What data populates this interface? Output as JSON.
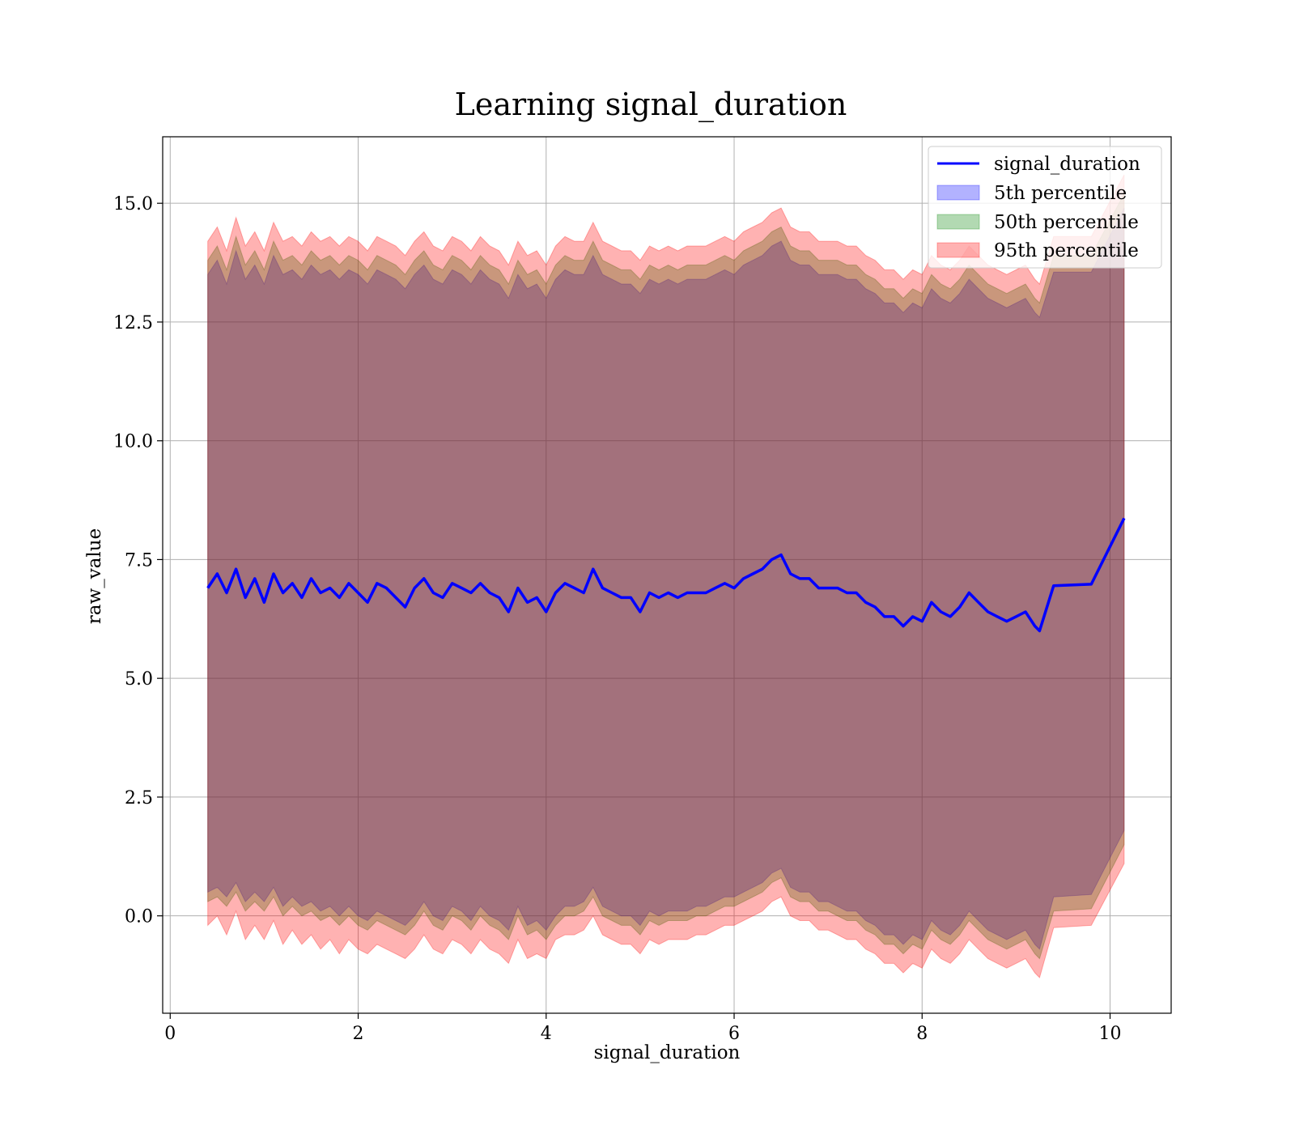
{
  "chart_data": {
    "type": "line",
    "title": "Learning signal_duration",
    "xlabel": "signal_duration",
    "ylabel": "raw_value",
    "xlim": [
      -0.08,
      10.65
    ],
    "ylim": [
      -2.05,
      16.4
    ],
    "xticks": [
      0,
      2,
      4,
      6,
      8,
      10
    ],
    "xtick_labels": [
      "0",
      "2",
      "4",
      "6",
      "8",
      "10"
    ],
    "yticks": [
      0,
      2.5,
      5,
      7.5,
      10,
      12.5,
      15
    ],
    "ytick_labels": [
      "0.0",
      "2.5",
      "5.0",
      "7.5",
      "10.0",
      "12.5",
      "15.0"
    ],
    "grid": true,
    "legend_position": "top-right",
    "x": [
      0.4,
      0.5,
      0.6,
      0.7,
      0.8,
      0.9,
      1.0,
      1.1,
      1.2,
      1.3,
      1.4,
      1.5,
      1.6,
      1.7,
      1.8,
      1.9,
      2.0,
      2.1,
      2.2,
      2.3,
      2.4,
      2.5,
      2.6,
      2.7,
      2.8,
      2.9,
      3.0,
      3.1,
      3.2,
      3.3,
      3.4,
      3.5,
      3.6,
      3.7,
      3.8,
      3.9,
      4.0,
      4.1,
      4.2,
      4.3,
      4.4,
      4.5,
      4.6,
      4.7,
      4.8,
      4.9,
      5.0,
      5.1,
      5.2,
      5.3,
      5.4,
      5.5,
      5.6,
      5.7,
      5.8,
      5.9,
      6.0,
      6.1,
      6.2,
      6.3,
      6.4,
      6.5,
      6.6,
      6.7,
      6.8,
      6.9,
      7.0,
      7.1,
      7.2,
      7.3,
      7.4,
      7.5,
      7.6,
      7.7,
      7.8,
      7.9,
      8.0,
      8.1,
      8.2,
      8.3,
      8.4,
      8.5,
      8.6,
      8.7,
      8.8,
      8.9,
      9.0,
      9.1,
      9.2,
      9.25,
      9.4,
      9.8,
      10.15
    ],
    "series": [
      {
        "name": "signal_duration",
        "kind": "line",
        "color": "#0000ff",
        "values": [
          6.9,
          7.2,
          6.8,
          7.3,
          6.7,
          7.1,
          6.6,
          7.2,
          6.8,
          7.0,
          6.7,
          7.1,
          6.8,
          6.9,
          6.7,
          7.0,
          6.8,
          6.6,
          7.0,
          6.9,
          6.7,
          6.5,
          6.9,
          7.1,
          6.8,
          6.7,
          7.0,
          6.9,
          6.8,
          7.0,
          6.8,
          6.7,
          6.4,
          6.9,
          6.6,
          6.7,
          6.4,
          6.8,
          7.0,
          6.9,
          6.8,
          7.3,
          6.9,
          6.8,
          6.7,
          6.7,
          6.4,
          6.8,
          6.7,
          6.8,
          6.7,
          6.8,
          6.8,
          6.8,
          6.9,
          7.0,
          6.9,
          7.1,
          7.2,
          7.3,
          7.5,
          7.6,
          7.2,
          7.1,
          7.1,
          6.9,
          6.9,
          6.9,
          6.8,
          6.8,
          6.6,
          6.5,
          6.3,
          6.3,
          6.1,
          6.3,
          6.2,
          6.6,
          6.4,
          6.3,
          6.5,
          6.8,
          6.6,
          6.4,
          6.3,
          6.2,
          6.3,
          6.4,
          6.1,
          6.0,
          6.95,
          6.98,
          8.37
        ]
      },
      {
        "name": "5th percentile",
        "kind": "band",
        "color": "#0000ff",
        "lower": [
          0.5,
          0.6,
          0.4,
          0.7,
          0.3,
          0.5,
          0.3,
          0.6,
          0.2,
          0.4,
          0.2,
          0.3,
          0.1,
          0.2,
          0.0,
          0.2,
          0.0,
          -0.1,
          0.1,
          0.0,
          -0.1,
          -0.2,
          0.0,
          0.3,
          0.0,
          -0.1,
          0.2,
          0.1,
          -0.1,
          0.2,
          0.0,
          -0.1,
          -0.3,
          0.2,
          -0.2,
          -0.1,
          -0.3,
          0.0,
          0.2,
          0.2,
          0.3,
          0.6,
          0.2,
          0.1,
          0.0,
          0.0,
          -0.2,
          0.1,
          0.0,
          0.1,
          0.1,
          0.1,
          0.2,
          0.2,
          0.3,
          0.4,
          0.4,
          0.5,
          0.6,
          0.7,
          0.9,
          1.0,
          0.6,
          0.5,
          0.5,
          0.3,
          0.3,
          0.2,
          0.1,
          0.1,
          -0.1,
          -0.2,
          -0.4,
          -0.4,
          -0.6,
          -0.4,
          -0.5,
          -0.1,
          -0.3,
          -0.4,
          -0.2,
          0.1,
          -0.1,
          -0.3,
          -0.4,
          -0.5,
          -0.4,
          -0.3,
          -0.6,
          -0.7,
          0.4,
          0.45,
          1.8
        ],
        "upper": [
          13.5,
          13.8,
          13.3,
          14.0,
          13.4,
          13.7,
          13.3,
          13.9,
          13.5,
          13.6,
          13.4,
          13.7,
          13.5,
          13.6,
          13.4,
          13.6,
          13.5,
          13.3,
          13.6,
          13.5,
          13.4,
          13.2,
          13.5,
          13.7,
          13.4,
          13.3,
          13.6,
          13.5,
          13.3,
          13.6,
          13.4,
          13.3,
          13.0,
          13.5,
          13.2,
          13.3,
          13.0,
          13.4,
          13.6,
          13.5,
          13.5,
          13.9,
          13.5,
          13.4,
          13.3,
          13.3,
          13.1,
          13.4,
          13.3,
          13.4,
          13.3,
          13.4,
          13.4,
          13.4,
          13.5,
          13.6,
          13.5,
          13.7,
          13.8,
          13.9,
          14.1,
          14.2,
          13.8,
          13.7,
          13.7,
          13.5,
          13.5,
          13.5,
          13.4,
          13.4,
          13.2,
          13.1,
          12.9,
          12.9,
          12.7,
          12.9,
          12.8,
          13.2,
          13.0,
          12.9,
          13.1,
          13.4,
          13.2,
          13.0,
          12.9,
          12.8,
          12.9,
          13.0,
          12.7,
          12.6,
          13.55,
          13.55,
          14.9
        ]
      },
      {
        "name": "50th percentile",
        "kind": "band",
        "color": "#008000",
        "lower": [
          0.3,
          0.4,
          0.2,
          0.5,
          0.1,
          0.3,
          0.1,
          0.4,
          0.0,
          0.2,
          0.0,
          0.1,
          -0.1,
          0.0,
          -0.2,
          0.0,
          -0.2,
          -0.3,
          -0.1,
          -0.2,
          -0.3,
          -0.4,
          -0.2,
          0.1,
          -0.2,
          -0.3,
          0.0,
          -0.1,
          -0.3,
          0.0,
          -0.2,
          -0.3,
          -0.5,
          0.0,
          -0.4,
          -0.3,
          -0.5,
          -0.2,
          0.0,
          0.0,
          0.1,
          0.4,
          0.0,
          -0.1,
          -0.2,
          -0.2,
          -0.4,
          -0.1,
          -0.2,
          -0.1,
          -0.1,
          -0.1,
          0.0,
          0.0,
          0.1,
          0.2,
          0.2,
          0.3,
          0.4,
          0.5,
          0.7,
          0.8,
          0.4,
          0.3,
          0.3,
          0.1,
          0.1,
          0.0,
          -0.1,
          -0.1,
          -0.3,
          -0.4,
          -0.6,
          -0.6,
          -0.8,
          -0.6,
          -0.7,
          -0.3,
          -0.5,
          -0.6,
          -0.4,
          -0.1,
          -0.3,
          -0.5,
          -0.6,
          -0.7,
          -0.6,
          -0.5,
          -0.8,
          -0.9,
          0.1,
          0.15,
          1.5
        ],
        "upper": [
          13.8,
          14.1,
          13.6,
          14.3,
          13.7,
          14.0,
          13.6,
          14.2,
          13.8,
          13.9,
          13.7,
          14.0,
          13.8,
          13.9,
          13.7,
          13.9,
          13.8,
          13.6,
          13.9,
          13.8,
          13.7,
          13.5,
          13.8,
          14.0,
          13.7,
          13.6,
          13.9,
          13.8,
          13.6,
          13.9,
          13.7,
          13.6,
          13.3,
          13.8,
          13.5,
          13.6,
          13.3,
          13.7,
          13.9,
          13.8,
          13.8,
          14.2,
          13.8,
          13.7,
          13.6,
          13.6,
          13.4,
          13.7,
          13.6,
          13.7,
          13.6,
          13.7,
          13.7,
          13.7,
          13.8,
          13.9,
          13.8,
          14.0,
          14.1,
          14.2,
          14.4,
          14.5,
          14.1,
          14.0,
          14.0,
          13.8,
          13.8,
          13.8,
          13.7,
          13.7,
          13.5,
          13.4,
          13.2,
          13.2,
          13.0,
          13.2,
          13.1,
          13.5,
          13.3,
          13.2,
          13.4,
          13.7,
          13.5,
          13.3,
          13.2,
          13.1,
          13.2,
          13.3,
          13.0,
          12.9,
          13.9,
          13.9,
          15.2
        ]
      },
      {
        "name": "95th percentile",
        "kind": "band",
        "color": "#ff0000",
        "lower": [
          -0.2,
          0.0,
          -0.4,
          0.1,
          -0.5,
          -0.2,
          -0.5,
          -0.1,
          -0.6,
          -0.3,
          -0.6,
          -0.4,
          -0.7,
          -0.5,
          -0.8,
          -0.5,
          -0.7,
          -0.8,
          -0.6,
          -0.7,
          -0.8,
          -0.9,
          -0.7,
          -0.4,
          -0.7,
          -0.8,
          -0.5,
          -0.6,
          -0.8,
          -0.5,
          -0.7,
          -0.8,
          -1.0,
          -0.5,
          -0.9,
          -0.8,
          -0.9,
          -0.5,
          -0.4,
          -0.4,
          -0.3,
          0.0,
          -0.4,
          -0.5,
          -0.6,
          -0.6,
          -0.8,
          -0.5,
          -0.6,
          -0.5,
          -0.5,
          -0.5,
          -0.4,
          -0.4,
          -0.3,
          -0.2,
          -0.2,
          -0.1,
          0.0,
          0.1,
          0.3,
          0.4,
          0.0,
          -0.1,
          -0.1,
          -0.3,
          -0.3,
          -0.4,
          -0.5,
          -0.5,
          -0.7,
          -0.8,
          -1.0,
          -1.0,
          -1.2,
          -1.0,
          -1.1,
          -0.7,
          -0.9,
          -1.0,
          -0.8,
          -0.5,
          -0.7,
          -0.9,
          -1.0,
          -1.1,
          -1.0,
          -0.9,
          -1.2,
          -1.3,
          -0.25,
          -0.2,
          1.1
        ],
        "upper": [
          14.2,
          14.5,
          14.0,
          14.7,
          14.1,
          14.4,
          14.0,
          14.6,
          14.2,
          14.3,
          14.1,
          14.4,
          14.2,
          14.3,
          14.1,
          14.3,
          14.2,
          14.0,
          14.3,
          14.2,
          14.1,
          13.9,
          14.2,
          14.4,
          14.1,
          14.0,
          14.3,
          14.2,
          14.0,
          14.3,
          14.1,
          14.0,
          13.7,
          14.2,
          13.9,
          14.0,
          13.7,
          14.1,
          14.3,
          14.2,
          14.2,
          14.6,
          14.2,
          14.1,
          14.0,
          14.0,
          13.8,
          14.1,
          14.0,
          14.1,
          14.0,
          14.1,
          14.1,
          14.1,
          14.2,
          14.3,
          14.2,
          14.4,
          14.5,
          14.6,
          14.8,
          14.9,
          14.5,
          14.4,
          14.4,
          14.2,
          14.2,
          14.2,
          14.1,
          14.1,
          13.9,
          13.8,
          13.6,
          13.6,
          13.4,
          13.6,
          13.5,
          13.9,
          13.7,
          13.6,
          13.8,
          14.1,
          13.9,
          13.7,
          13.6,
          13.5,
          13.6,
          13.7,
          13.4,
          13.3,
          14.3,
          14.3,
          15.6
        ]
      }
    ]
  }
}
